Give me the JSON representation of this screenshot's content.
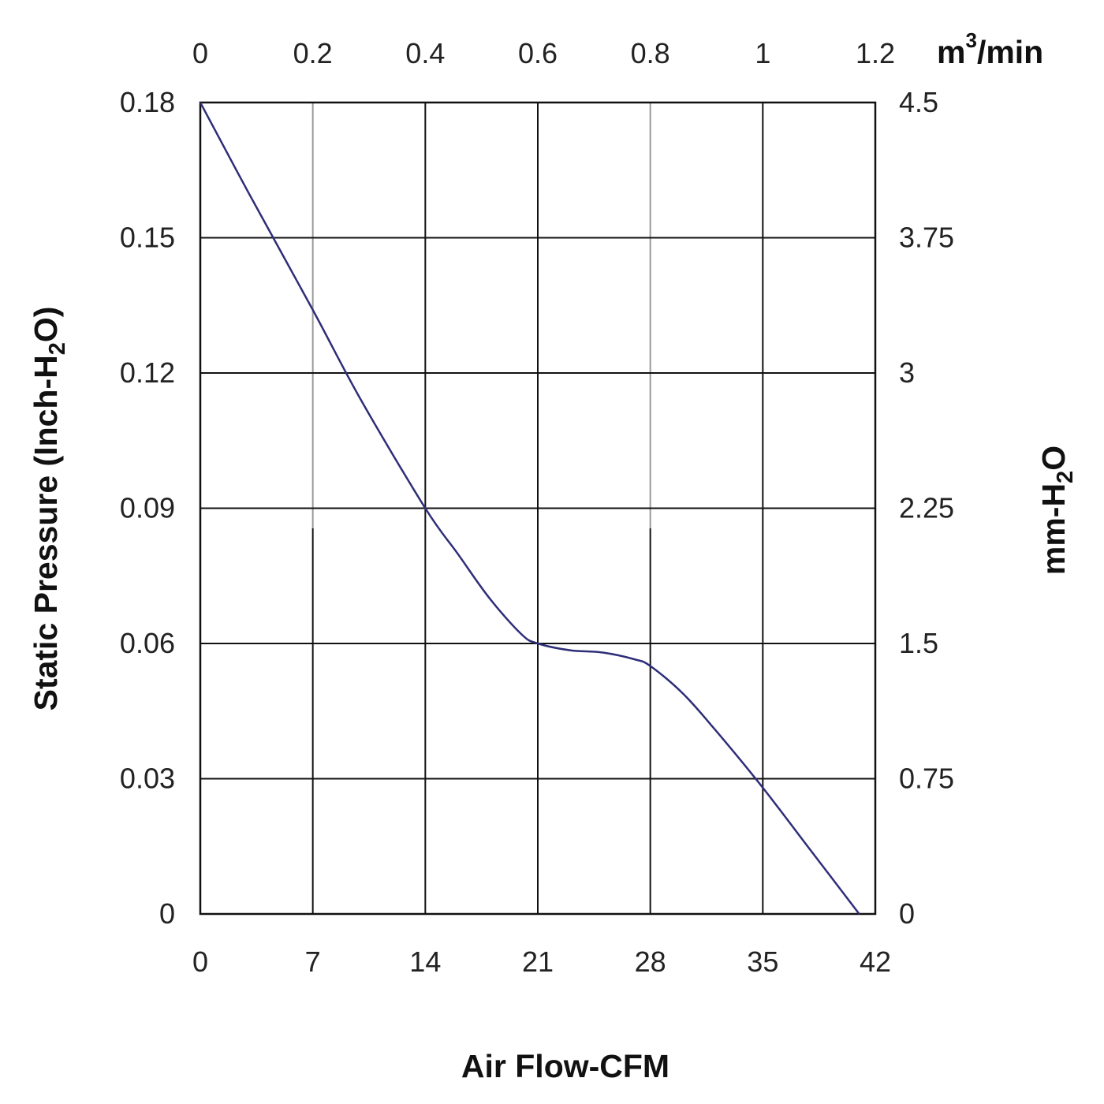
{
  "chart_data": {
    "type": "line",
    "xlabel": "Air Flow-CFM",
    "ylabel_main": "Static Pressure (Inch-H",
    "ylabel_sub": "2",
    "ylabel_end": "O)",
    "y2label_main": "mm-H",
    "y2label_sub": "2",
    "y2label_end": "O",
    "x2label_main": "m",
    "x2label_sup": "3",
    "x2label_end": "/min",
    "xlim": [
      0,
      42
    ],
    "ylim": [
      0,
      0.18
    ],
    "x_ticks": [
      "0",
      "7",
      "14",
      "21",
      "28",
      "35",
      "42"
    ],
    "y_ticks": [
      "0",
      "0.03",
      "0.06",
      "0.09",
      "0.12",
      "0.15",
      "0.18"
    ],
    "x2_ticks": [
      "0",
      "0.2",
      "0.4",
      "0.6",
      "0.8",
      "1",
      "1.2"
    ],
    "y2_ticks": [
      "0",
      "0.75",
      "1.5",
      "2.25",
      "3",
      "3.75",
      "4.5"
    ],
    "grid": true,
    "colors": {
      "curve": "#2e2e78",
      "grid": "#111111",
      "grid_light": "#9a9a9a"
    },
    "series": [
      {
        "x": [
          0,
          3,
          7,
          10,
          14,
          16,
          18,
          20,
          21,
          23,
          25,
          27,
          28,
          30,
          32,
          35,
          38,
          41
        ],
        "values": [
          0.18,
          0.16,
          0.134,
          0.114,
          0.09,
          0.08,
          0.07,
          0.062,
          0.06,
          0.0585,
          0.058,
          0.0565,
          0.055,
          0.049,
          0.041,
          0.028,
          0.014,
          0
        ]
      }
    ]
  }
}
